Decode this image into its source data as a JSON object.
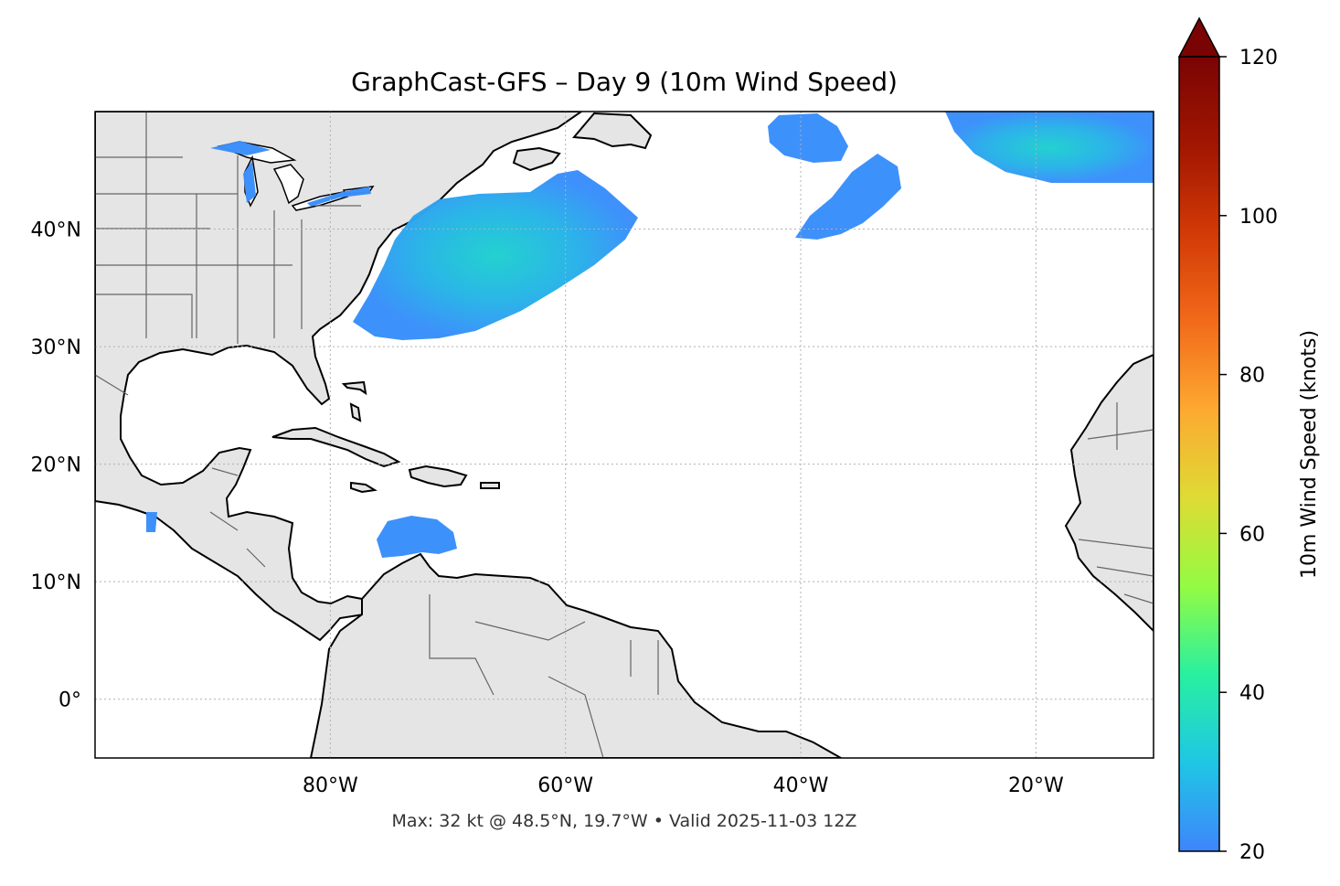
{
  "title": "GraphCast-GFS – Day 9 (10m Wind Speed)",
  "footer": "Max: 32 kt @ 48.5°N, 19.7°W • Valid 2025-11-03 12Z",
  "map": {
    "lon_range": [
      -100,
      -10
    ],
    "lat_range": [
      -5,
      50
    ],
    "grid_lons": [
      -80,
      -60,
      -40,
      -20
    ],
    "grid_lats": [
      0,
      10,
      20,
      30,
      40
    ],
    "x_ticks": [
      "80°W",
      "60°W",
      "40°W",
      "20°W"
    ],
    "y_ticks": [
      "0°",
      "10°N",
      "20°N",
      "30°N",
      "40°N"
    ],
    "land_color": "#e5e5e5",
    "coast_color": "#000000",
    "border_color": "#666666",
    "grid_color": "#b0b0b0"
  },
  "wind_regions": [
    {
      "name": "us-east-coast-offshore",
      "center": [
        -67,
        37.5
      ],
      "peak_kt": 26
    },
    {
      "name": "caribbean-north-of-venezuela",
      "center": [
        -71,
        13.5
      ],
      "peak_kt": 21
    },
    {
      "name": "mid-atlantic-north",
      "center": [
        -39,
        47
      ],
      "peak_kt": 22
    },
    {
      "name": "mid-atlantic-band",
      "center": [
        -35,
        41.5
      ],
      "peak_kt": 21
    },
    {
      "name": "northeast-atlantic",
      "center": [
        -20,
        48
      ],
      "peak_kt": 32
    },
    {
      "name": "great-lakes",
      "center": [
        -84,
        44
      ],
      "peak_kt": 21
    }
  ],
  "colorbar": {
    "label": "10m Wind Speed (knots)",
    "min": 20,
    "max": 120,
    "ticks": [
      20,
      40,
      60,
      80,
      100,
      120
    ],
    "extend": "max",
    "colormap": "turbo",
    "stops": [
      "#3e85fc",
      "#1fc6e5",
      "#28f0a0",
      "#94fb43",
      "#dedb34",
      "#fda931",
      "#f26a1a",
      "#d23a06",
      "#a11602",
      "#7a0403"
    ]
  }
}
